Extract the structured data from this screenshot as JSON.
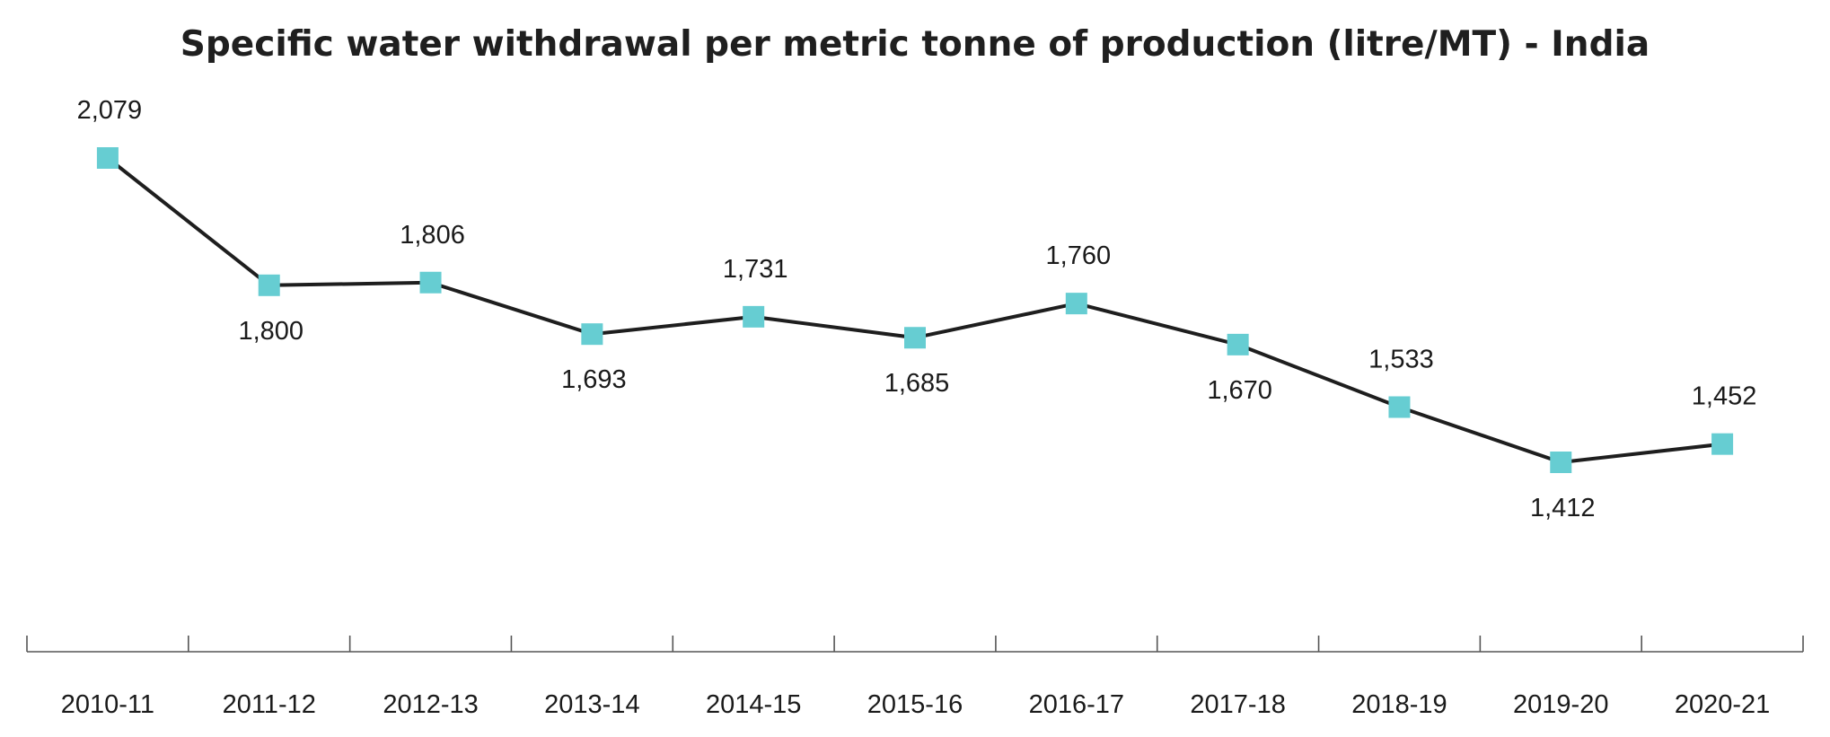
{
  "chart_data": {
    "type": "line",
    "title": "Specific water withdrawal per metric tonne of production (litre/MT) - India",
    "xlabel": "",
    "ylabel": "",
    "categories": [
      "2010-11",
      "2011-12",
      "2012-13",
      "2013-14",
      "2014-15",
      "2015-16",
      "2016-17",
      "2017-18",
      "2018-19",
      "2019-20",
      "2020-21"
    ],
    "series": [
      {
        "name": "Specific water withdrawal (litre/MT)",
        "values": [
          2079,
          1800,
          1806,
          1693,
          1731,
          1685,
          1760,
          1670,
          1533,
          1412,
          1452
        ],
        "labels": [
          "2,079",
          "1,800",
          "1,806",
          "1,693",
          "1,731",
          "1,685",
          "1,760",
          "1,670",
          "1,533",
          "1,412",
          "1,452"
        ],
        "label_positions": [
          "above",
          "below",
          "above",
          "below",
          "above",
          "below",
          "above",
          "below",
          "above",
          "below",
          "above"
        ]
      }
    ],
    "ylim": [
      1000,
      2200
    ],
    "grid": false,
    "legend": "none",
    "colors": {
      "line": "#1e1e1e",
      "marker": "#66cdd2",
      "axis": "#555555",
      "text": "#1a1a1a"
    }
  }
}
